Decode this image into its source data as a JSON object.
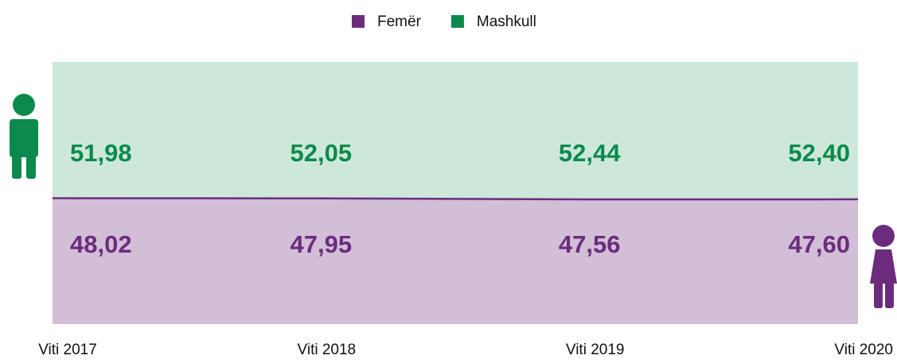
{
  "chart_data": {
    "type": "stacked-area",
    "categories": [
      "Viti 2017",
      "Viti 2018",
      "Viti 2019",
      "Viti 2020"
    ],
    "series": [
      {
        "name": "Femër",
        "color": "#6b2c7d",
        "fill": "#d2bed6",
        "values": [
          48.02,
          47.95,
          47.56,
          47.6
        ],
        "value_labels": [
          "48,02",
          "47,95",
          "47,56",
          "47,60"
        ]
      },
      {
        "name": "Mashkull",
        "color": "#0b8a4b",
        "fill": "#cde8db",
        "values": [
          51.98,
          52.05,
          52.44,
          52.4
        ],
        "value_labels": [
          "51,98",
          "52,05",
          "52,44",
          "52,40"
        ]
      }
    ],
    "ylim": [
      0,
      100
    ],
    "legend": "top"
  }
}
